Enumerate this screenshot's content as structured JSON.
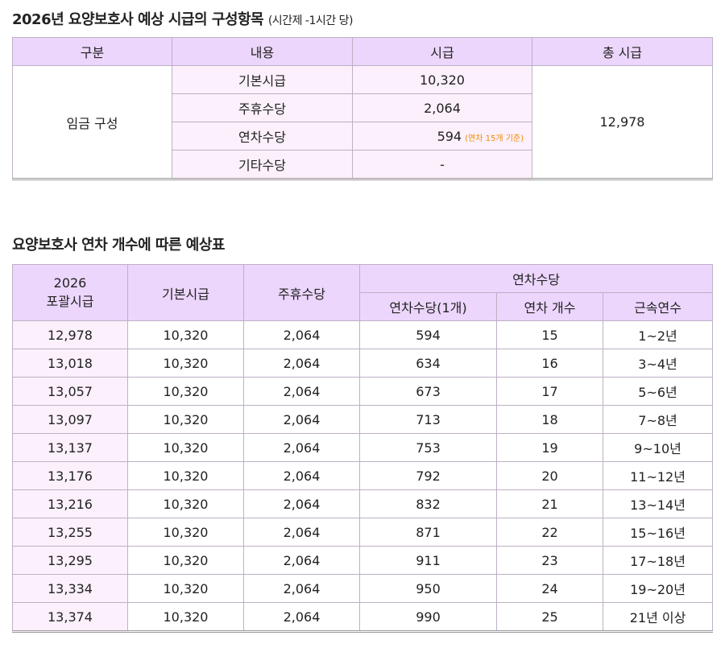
{
  "section1": {
    "title": "2026년 요양보호사 예상 시급의 구성항목",
    "subtitle": "(시간제 -1시간 당)",
    "headers": [
      "구분",
      "내용",
      "시급",
      "총 시급"
    ],
    "group": "임금 구성",
    "total": "12,978",
    "rows": [
      {
        "label": "기본시급",
        "value": "10,320"
      },
      {
        "label": "주휴수당",
        "value": "2,064"
      },
      {
        "label": "연차수당",
        "value": "594",
        "note": "(연차 15개 기준)"
      },
      {
        "label": "기타수당",
        "value": "-"
      }
    ]
  },
  "section2": {
    "title": "요양보호사 연차 개수에 따른 예상표",
    "headers": {
      "total_line1": "2026",
      "total_line2": "포괄시급",
      "base": "기본시급",
      "weekly": "주휴수당",
      "annual_group": "연차수당",
      "annual_unit": "연차수당(1개)",
      "annual_count": "연차 개수",
      "years": "근속연수"
    },
    "rows": [
      [
        "12,978",
        "10,320",
        "2,064",
        "594",
        "15",
        "1~2년"
      ],
      [
        "13,018",
        "10,320",
        "2,064",
        "634",
        "16",
        "3~4년"
      ],
      [
        "13,057",
        "10,320",
        "2,064",
        "673",
        "17",
        "5~6년"
      ],
      [
        "13,097",
        "10,320",
        "2,064",
        "713",
        "18",
        "7~8년"
      ],
      [
        "13,137",
        "10,320",
        "2,064",
        "753",
        "19",
        "9~10년"
      ],
      [
        "13,176",
        "10,320",
        "2,064",
        "792",
        "20",
        "11~12년"
      ],
      [
        "13,216",
        "10,320",
        "2,064",
        "832",
        "21",
        "13~14년"
      ],
      [
        "13,255",
        "10,320",
        "2,064",
        "871",
        "22",
        "15~16년"
      ],
      [
        "13,295",
        "10,320",
        "2,064",
        "911",
        "23",
        "17~18년"
      ],
      [
        "13,334",
        "10,320",
        "2,064",
        "950",
        "24",
        "19~20년"
      ],
      [
        "13,374",
        "10,320",
        "2,064",
        "990",
        "25",
        "21년 이상"
      ]
    ]
  }
}
